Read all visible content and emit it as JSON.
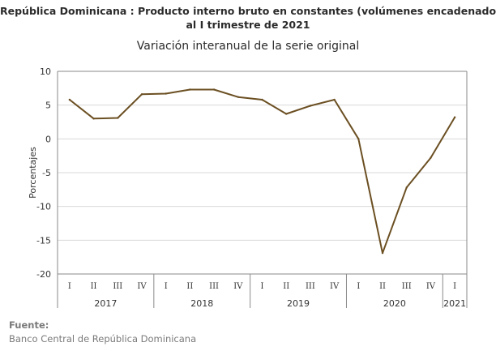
{
  "title_line1": "República Dominicana : Producto interno bruto en constantes (volúmenes encadenados)",
  "title_line2": "al I trimestre de 2021",
  "subtitle": "Variación interanual de la serie original",
  "source_label": "Fuente:",
  "source_text": "Banco Central de República Dominicana",
  "chart_data": {
    "type": "line",
    "title": "Variación interanual de la serie original",
    "ylabel": "Porcentajes",
    "ylim": [
      -20,
      10
    ],
    "yticks": [
      10,
      5,
      0,
      -5,
      -10,
      -15,
      -20
    ],
    "quarters": [
      "I",
      "II",
      "III",
      "IV",
      "I",
      "II",
      "III",
      "IV",
      "I",
      "II",
      "III",
      "IV",
      "I",
      "II",
      "III",
      "IV",
      "I"
    ],
    "years": [
      {
        "label": "2017",
        "count": 4
      },
      {
        "label": "2018",
        "count": 4
      },
      {
        "label": "2019",
        "count": 4
      },
      {
        "label": "2020",
        "count": 4
      },
      {
        "label": "2021",
        "count": 1
      }
    ],
    "series": [
      {
        "values": [
          5.8,
          3.0,
          3.1,
          6.6,
          6.7,
          7.3,
          7.3,
          6.2,
          5.8,
          3.7,
          4.9,
          5.8,
          0.0,
          -16.9,
          -7.2,
          -2.8,
          3.2
        ]
      }
    ],
    "colors": {
      "line": "#6b4f22",
      "axis": "#8a8a8a"
    }
  }
}
